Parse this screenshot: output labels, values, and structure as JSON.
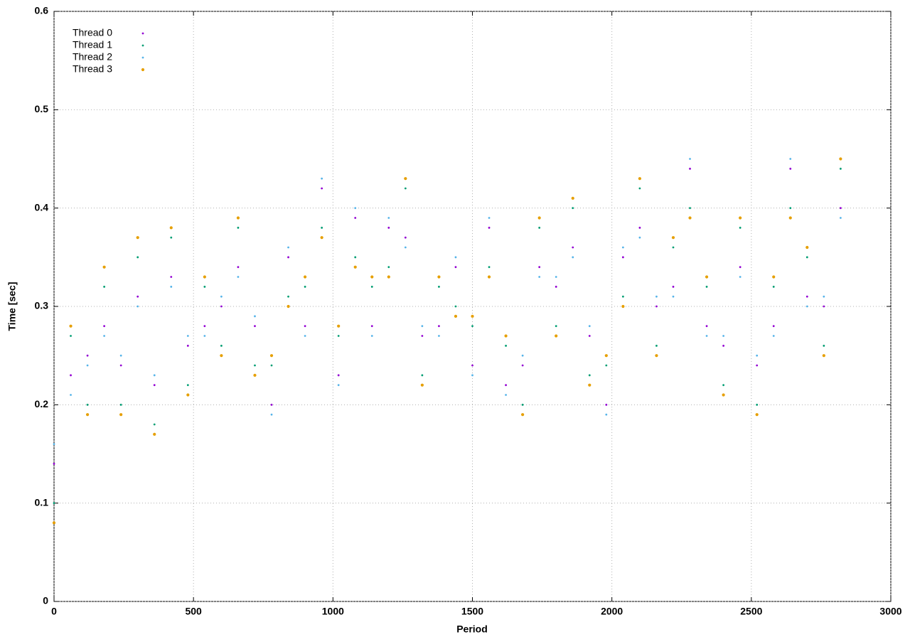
{
  "chart_data": {
    "type": "scatter",
    "xlabel": "Period",
    "ylabel": "Time [sec]",
    "xlim": [
      0,
      3000
    ],
    "ylim": [
      0,
      0.6
    ],
    "xticks": [
      0,
      500,
      1000,
      1500,
      2000,
      2500,
      3000
    ],
    "yticks": [
      0,
      0.1,
      0.2,
      0.3,
      0.4,
      0.5,
      0.6
    ],
    "grid": true,
    "legend": "top-left",
    "x": [
      0,
      60,
      120,
      180,
      240,
      300,
      360,
      420,
      480,
      540,
      600,
      660,
      720,
      780,
      840,
      900,
      960,
      1020,
      1080,
      1140,
      1200,
      1260,
      1320,
      1380,
      1440,
      1500,
      1560,
      1620,
      1680,
      1740,
      1800,
      1860,
      1920,
      1980,
      2040,
      2100,
      2160,
      2220,
      2280,
      2340,
      2400,
      2460,
      2520,
      2580,
      2640,
      2700,
      2760,
      2820
    ],
    "series": [
      {
        "name": "Thread 0",
        "color": "#9400d3",
        "values": [
          0.14,
          0.23,
          0.25,
          0.28,
          0.24,
          0.31,
          0.22,
          0.33,
          0.26,
          0.28,
          0.3,
          0.34,
          0.28,
          0.2,
          0.35,
          0.28,
          0.42,
          0.23,
          0.39,
          0.28,
          0.38,
          0.37,
          0.27,
          0.28,
          0.34,
          0.24,
          0.38,
          0.22,
          0.24,
          0.34,
          0.32,
          0.36,
          0.27,
          0.2,
          0.35,
          0.38,
          0.3,
          0.32,
          0.44,
          0.28,
          0.26,
          0.34,
          0.24,
          0.28,
          0.44,
          0.31,
          0.3,
          0.4
        ]
      },
      {
        "name": "Thread 1",
        "color": "#009e73",
        "values": [
          0.1,
          0.27,
          0.2,
          0.32,
          0.2,
          0.35,
          0.18,
          0.37,
          0.22,
          0.32,
          0.26,
          0.38,
          0.24,
          0.24,
          0.31,
          0.32,
          0.38,
          0.27,
          0.35,
          0.32,
          0.34,
          0.42,
          0.23,
          0.32,
          0.3,
          0.28,
          0.34,
          0.26,
          0.2,
          0.38,
          0.28,
          0.4,
          0.23,
          0.24,
          0.31,
          0.42,
          0.26,
          0.36,
          0.4,
          0.32,
          0.22,
          0.38,
          0.2,
          0.32,
          0.4,
          0.35,
          0.26,
          0.44
        ]
      },
      {
        "name": "Thread 2",
        "color": "#56b4e9",
        "values": [
          0.16,
          0.21,
          0.24,
          0.27,
          0.25,
          0.3,
          0.23,
          0.32,
          0.27,
          0.27,
          0.31,
          0.33,
          0.29,
          0.19,
          0.36,
          0.27,
          0.43,
          0.22,
          0.4,
          0.27,
          0.39,
          0.36,
          0.28,
          0.27,
          0.35,
          0.23,
          0.39,
          0.21,
          0.25,
          0.33,
          0.33,
          0.35,
          0.28,
          0.19,
          0.36,
          0.37,
          0.31,
          0.31,
          0.45,
          0.27,
          0.27,
          0.33,
          0.25,
          0.27,
          0.45,
          0.3,
          0.31,
          0.39
        ]
      },
      {
        "name": "Thread 3",
        "color": "#e69f00",
        "values": [
          0.08,
          0.28,
          0.19,
          0.34,
          0.19,
          0.37,
          0.17,
          0.38,
          0.21,
          0.33,
          0.25,
          0.39,
          0.23,
          0.25,
          0.3,
          0.33,
          0.37,
          0.28,
          0.34,
          0.33,
          0.33,
          0.43,
          0.22,
          0.33,
          0.29,
          0.29,
          0.33,
          0.27,
          0.19,
          0.39,
          0.27,
          0.41,
          0.22,
          0.25,
          0.3,
          0.43,
          0.25,
          0.37,
          0.39,
          0.33,
          0.21,
          0.39,
          0.19,
          0.33,
          0.39,
          0.36,
          0.25,
          0.45
        ]
      }
    ]
  }
}
